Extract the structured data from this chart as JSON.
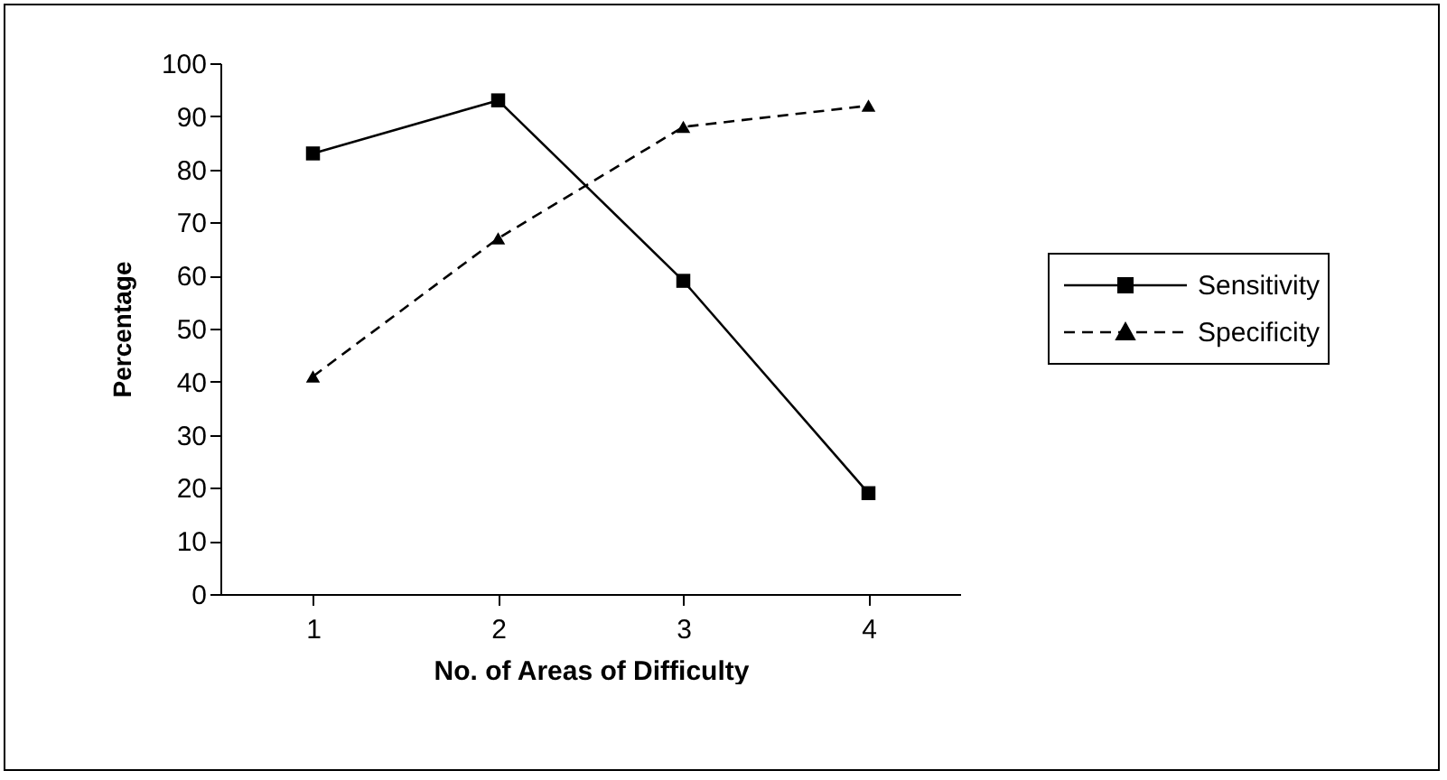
{
  "chart_data": {
    "type": "line",
    "xlabel": "No. of Areas of Difficulty",
    "ylabel": "Percentage",
    "categories": [
      "1",
      "2",
      "3",
      "4"
    ],
    "ylim": [
      0,
      100
    ],
    "yticks": [
      0,
      10,
      20,
      30,
      40,
      50,
      60,
      70,
      80,
      90,
      100
    ],
    "grid": false,
    "legend": "right",
    "series": [
      {
        "name": "Sensitivity",
        "color": "#000000",
        "values": [
          83,
          93,
          59,
          19
        ],
        "marker": "square",
        "line_style": "solid"
      },
      {
        "name": "Specificity",
        "color": "#000000",
        "values": [
          41,
          67,
          88,
          92
        ],
        "marker": "triangle",
        "line_style": "dashed"
      }
    ]
  }
}
